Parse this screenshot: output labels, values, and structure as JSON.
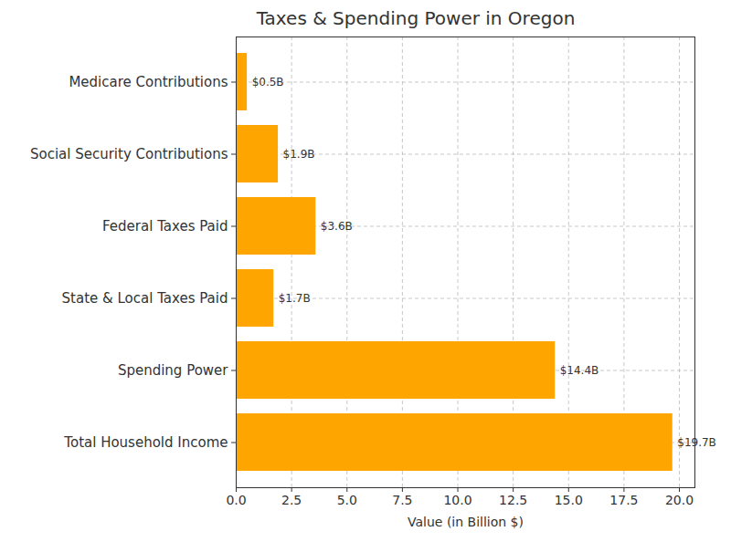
{
  "chart_data": {
    "type": "bar",
    "orientation": "horizontal",
    "title": "Taxes & Spending Power in Oregon",
    "xlabel": "Value (in Billion $)",
    "categories": [
      "Medicare Contributions",
      "Social Security Contributions",
      "Federal Taxes Paid",
      "State & Local Taxes Paid",
      "Spending Power",
      "Total Household Income"
    ],
    "values": [
      0.5,
      1.9,
      3.6,
      1.7,
      14.4,
      19.7
    ],
    "value_labels": [
      "$0.5B",
      "$1.9B",
      "$3.6B",
      "$1.7B",
      "$14.4B",
      "$19.7B"
    ],
    "data_labels": true,
    "color": "#ffa500",
    "xlim": [
      0,
      20.7
    ],
    "xticks": [
      {
        "value": 0,
        "label": "0.0"
      },
      2.5,
      {
        "value": 5,
        "label": "5.0"
      },
      7.5,
      {
        "value": 10,
        "label": "10.0"
      },
      12.5,
      {
        "value": 15,
        "label": "15.0"
      },
      17.5,
      {
        "value": 20,
        "label": "20.0"
      }
    ],
    "grid": true
  }
}
